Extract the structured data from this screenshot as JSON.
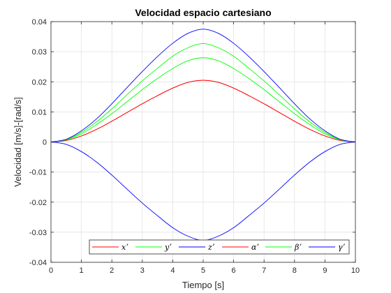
{
  "chart_data": {
    "type": "line",
    "title": "Velocidad espacio cartesiano",
    "xlabel": "Tiempo [s]",
    "ylabel": "Velocidad [m/s]-[rad/s]",
    "xlim": [
      0,
      10
    ],
    "ylim": [
      -0.04,
      0.04
    ],
    "x_ticks": [
      0,
      1,
      2,
      3,
      4,
      5,
      6,
      7,
      8,
      9,
      10
    ],
    "x_tick_labels": [
      "0",
      "1",
      "2",
      "3",
      "4",
      "5",
      "6",
      "7",
      "8",
      "9",
      "10"
    ],
    "y_ticks": [
      -0.04,
      -0.03,
      -0.02,
      -0.01,
      0,
      0.01,
      0.02,
      0.03,
      0.04
    ],
    "y_tick_labels": [
      "-0.04",
      "-0.03",
      "-0.02",
      "-0.01",
      "0",
      "0.01",
      "0.02",
      "0.03",
      "0.04"
    ],
    "grid": true,
    "legend_position": "bottom",
    "x": [
      0,
      0.5,
      1,
      1.5,
      2,
      2.5,
      3,
      3.5,
      4,
      4.5,
      5,
      5.5,
      6,
      6.5,
      7,
      7.5,
      8,
      8.5,
      9,
      9.5,
      10
    ],
    "series": [
      {
        "name": "xʼ",
        "color": "#ff0000",
        "values": [
          0,
          0.0005,
          0.002,
          0.0042,
          0.0069,
          0.0098,
          0.0127,
          0.0154,
          0.0179,
          0.0198,
          0.0205,
          0.0198,
          0.0179,
          0.0154,
          0.0127,
          0.0098,
          0.0069,
          0.0042,
          0.002,
          0.0005,
          0
        ]
      },
      {
        "name": "yʼ",
        "color": "#00ff00",
        "values": [
          0,
          0.0008,
          0.0032,
          0.0067,
          0.011,
          0.0157,
          0.0203,
          0.0245,
          0.0285,
          0.0313,
          0.0327,
          0.0313,
          0.0285,
          0.0245,
          0.0203,
          0.0157,
          0.011,
          0.0067,
          0.0032,
          0.0008,
          0
        ]
      },
      {
        "name": "zʼ",
        "color": "#0000ff",
        "values": [
          0,
          -0.0008,
          -0.0032,
          -0.0067,
          -0.011,
          -0.0157,
          -0.0203,
          -0.0245,
          -0.0285,
          -0.0313,
          -0.0327,
          -0.0313,
          -0.0285,
          -0.0245,
          -0.0203,
          -0.0157,
          -0.011,
          -0.0067,
          -0.0032,
          -0.0008,
          0
        ]
      },
      {
        "name": "αʼ",
        "color": "#ff0000",
        "values": [
          0,
          0.0005,
          0.002,
          0.0042,
          0.0069,
          0.0098,
          0.0127,
          0.0154,
          0.0179,
          0.0198,
          0.0205,
          0.0198,
          0.0179,
          0.0154,
          0.0127,
          0.0098,
          0.0069,
          0.0042,
          0.002,
          0.0005,
          0
        ]
      },
      {
        "name": "βʼ",
        "color": "#00ff00",
        "values": [
          0,
          0.0007,
          0.0027,
          0.0058,
          0.0094,
          0.0134,
          0.0174,
          0.0211,
          0.0244,
          0.027,
          0.028,
          0.027,
          0.0244,
          0.0211,
          0.0174,
          0.0134,
          0.0094,
          0.0058,
          0.0027,
          0.0007,
          0
        ]
      },
      {
        "name": "γʼ",
        "color": "#0000ff",
        "values": [
          0,
          0.0009,
          0.0037,
          0.0077,
          0.0127,
          0.0181,
          0.0234,
          0.0284,
          0.0328,
          0.0361,
          0.0375,
          0.0361,
          0.0328,
          0.0284,
          0.0234,
          0.0181,
          0.0127,
          0.0077,
          0.0037,
          0.0009,
          0
        ]
      }
    ]
  }
}
